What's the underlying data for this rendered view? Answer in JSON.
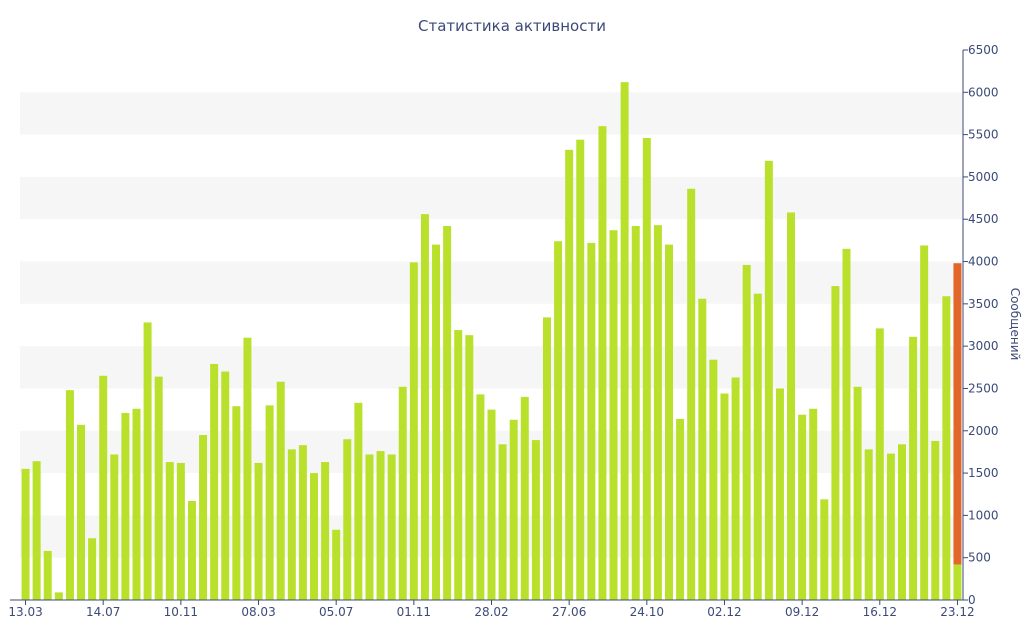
{
  "chart_data": {
    "type": "bar",
    "title": "Статистика активности",
    "ylabel": "Сообщений",
    "y_axis_position": "right",
    "ylim": [
      0,
      6500
    ],
    "y_ticks": [
      0,
      500,
      1000,
      1500,
      2000,
      2500,
      3000,
      3500,
      4000,
      4500,
      5000,
      5500,
      6000,
      6500
    ],
    "x_tick_labels": [
      {
        "index": 0,
        "label": "13.03"
      },
      {
        "index": 7,
        "label": "14.07"
      },
      {
        "index": 14,
        "label": "10.11"
      },
      {
        "index": 21,
        "label": "08.03"
      },
      {
        "index": 28,
        "label": "05.07"
      },
      {
        "index": 35,
        "label": "01.11"
      },
      {
        "index": 42,
        "label": "28.02"
      },
      {
        "index": 49,
        "label": "27.06"
      },
      {
        "index": 56,
        "label": "24.10"
      },
      {
        "index": 63,
        "label": "02.12"
      },
      {
        "index": 70,
        "label": "09.12"
      },
      {
        "index": 77,
        "label": "16.12"
      },
      {
        "index": 84,
        "label": "23.12"
      }
    ],
    "grid": "alternating-bands",
    "colors": {
      "bar": "#b9e02b",
      "highlight": "#e2662a",
      "band": "#f6f6f6",
      "axis": "#3c4a78",
      "text": "#3c4a78"
    },
    "values": [
      1550,
      1640,
      580,
      90,
      2480,
      2070,
      730,
      2650,
      1720,
      2210,
      2260,
      3280,
      2640,
      1630,
      1620,
      1170,
      1950,
      2790,
      2700,
      2290,
      3100,
      1620,
      2300,
      2580,
      1780,
      1830,
      1500,
      1630,
      830,
      1900,
      2330,
      1720,
      1760,
      1720,
      2520,
      3990,
      4560,
      4200,
      4420,
      3190,
      3130,
      2430,
      2250,
      1840,
      2130,
      2400,
      1890,
      3340,
      4240,
      5320,
      5440,
      4220,
      5600,
      4370,
      6120,
      4420,
      5460,
      4430,
      4200,
      2140,
      4860,
      3560,
      2840,
      2440,
      2630,
      3960,
      3620,
      5190,
      2500,
      4580,
      2190,
      2260,
      1190,
      3710,
      4150,
      2520,
      1780,
      3210,
      1730,
      1840,
      3110,
      4190,
      1880,
      3590,
      3980
    ],
    "last_bar_highlight": {
      "index": 84,
      "value": 3980,
      "lower_value": 420
    }
  }
}
